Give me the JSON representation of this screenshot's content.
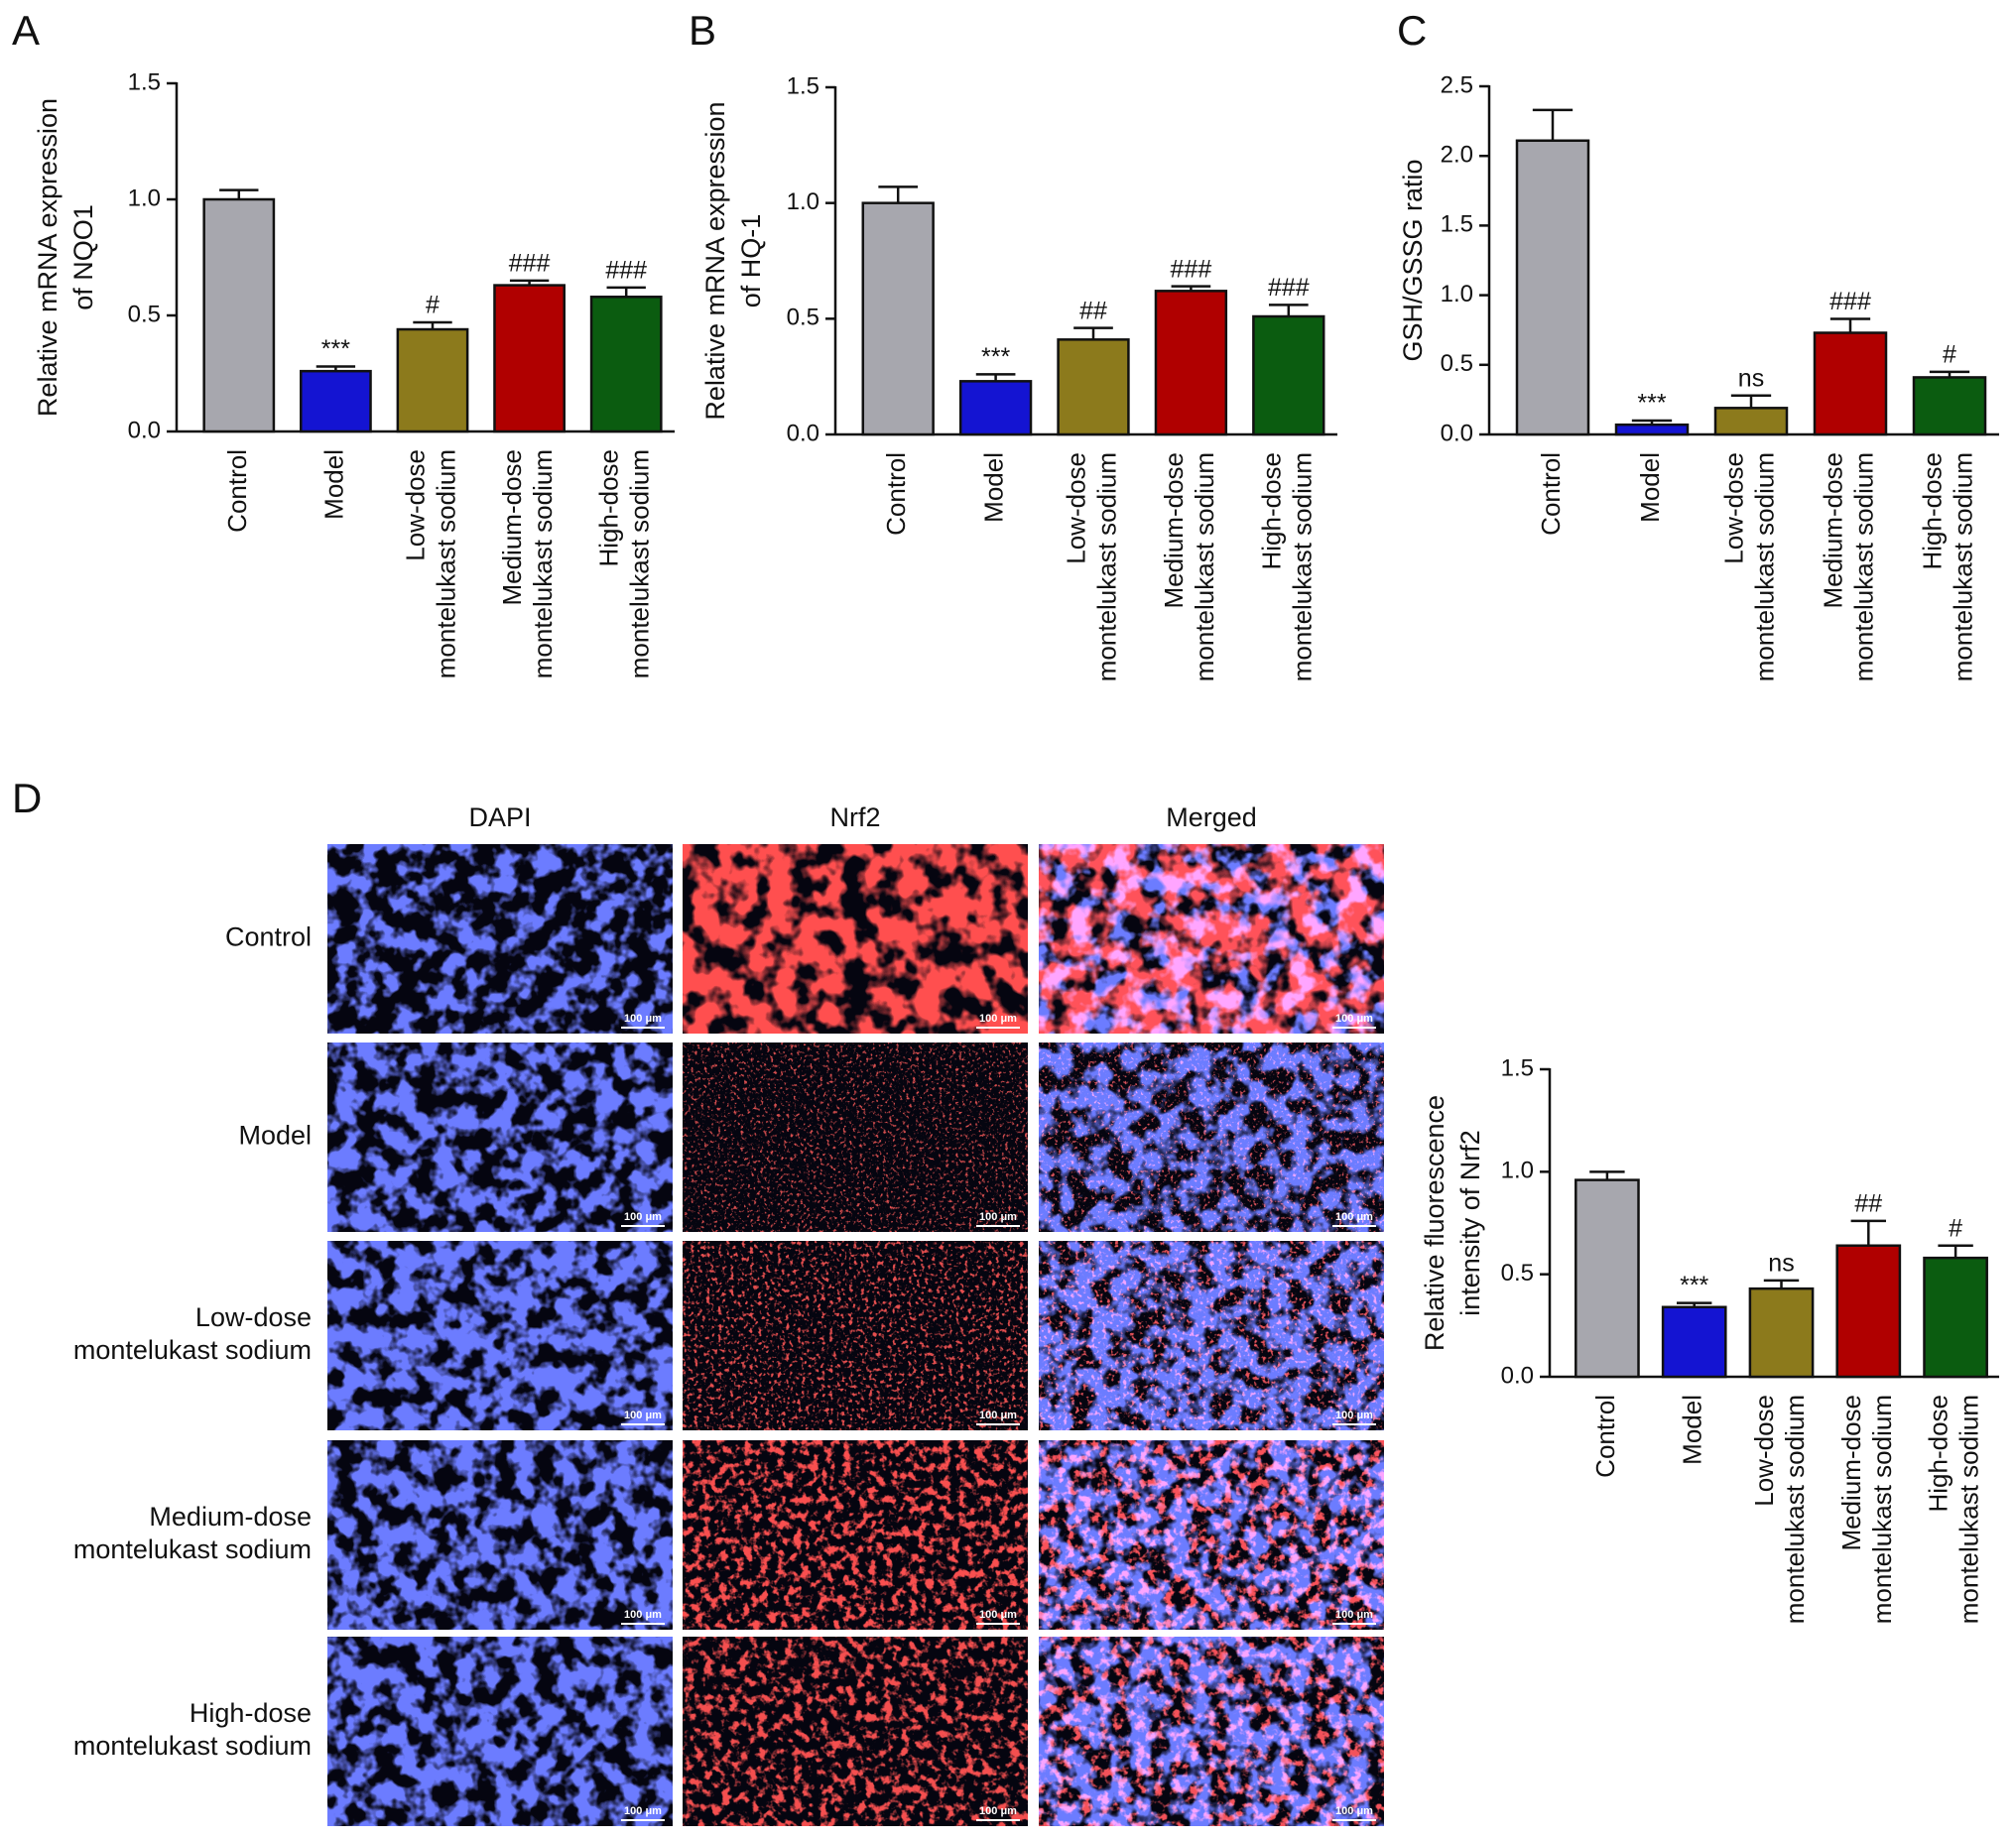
{
  "chart_data": [
    {
      "label": "A",
      "type": "bar",
      "ylabel": [
        "Relative mRNA expression",
        "of NQO1"
      ],
      "categories": [
        "Control",
        "Model",
        "Low-dose montelukast sodium",
        "Medium-dose montelukast sodium",
        "High-dose montelukast sodium"
      ],
      "values": [
        1.0,
        0.26,
        0.44,
        0.63,
        0.58
      ],
      "errors": [
        0.04,
        0.02,
        0.03,
        0.02,
        0.04
      ],
      "annotations": [
        null,
        "***",
        "#",
        "###",
        "###"
      ],
      "colors": [
        "#a7a7ae",
        "#1414d2",
        "#8c7a1c",
        "#b00000",
        "#0b5c10"
      ],
      "ylim": [
        0,
        1.5
      ],
      "yticks": [
        {
          "value": 0,
          "label": "0.0"
        },
        {
          "value": 0.5,
          "label": "0.5"
        },
        {
          "value": 1,
          "label": "1.0"
        },
        {
          "value": 1.5,
          "label": "1.5"
        }
      ]
    },
    {
      "label": "B",
      "type": "bar",
      "ylabel": [
        "Relative mRNA expression",
        "of HQ-1"
      ],
      "categories": [
        "Control",
        "Model",
        "Low-dose montelukast sodium",
        "Medium-dose montelukast sodium",
        "High-dose montelukast sodium"
      ],
      "values": [
        1.0,
        0.23,
        0.41,
        0.62,
        0.51
      ],
      "errors": [
        0.07,
        0.03,
        0.05,
        0.02,
        0.05
      ],
      "annotations": [
        null,
        "***",
        "##",
        "###",
        "###"
      ],
      "colors": [
        "#a7a7ae",
        "#1414d2",
        "#8c7a1c",
        "#b00000",
        "#0b5c10"
      ],
      "ylim": [
        0,
        1.5
      ],
      "yticks": [
        {
          "value": 0,
          "label": "0.0"
        },
        {
          "value": 0.5,
          "label": "0.5"
        },
        {
          "value": 1,
          "label": "1.0"
        },
        {
          "value": 1.5,
          "label": "1.5"
        }
      ]
    },
    {
      "label": "C",
      "type": "bar",
      "ylabel": [
        "GSH/GSSG ratio"
      ],
      "categories": [
        "Control",
        "Model",
        "Low-dose montelukast sodium",
        "Medium-dose montelukast sodium",
        "High-dose montelukast sodium"
      ],
      "values": [
        2.11,
        0.07,
        0.19,
        0.73,
        0.41
      ],
      "errors": [
        0.22,
        0.03,
        0.09,
        0.1,
        0.04
      ],
      "annotations": [
        null,
        "***",
        "ns",
        "###",
        "#"
      ],
      "colors": [
        "#a7a7ae",
        "#1414d2",
        "#8c7a1c",
        "#b00000",
        "#0b5c10"
      ],
      "ylim": [
        0,
        2.5
      ],
      "yticks": [
        {
          "value": 0,
          "label": "0.0"
        },
        {
          "value": 0.5,
          "label": "0.5"
        },
        {
          "value": 1,
          "label": "1.0"
        },
        {
          "value": 1.5,
          "label": "1.5"
        },
        {
          "value": 2,
          "label": "2.0"
        },
        {
          "value": 2.5,
          "label": "2.5"
        }
      ]
    },
    {
      "type": "bar",
      "ylabel": [
        "Relative fluorescence",
        "intensity of Nrf2"
      ],
      "categories": [
        "Control",
        "Model",
        "Low-dose montelukast sodium",
        "Medium-dose montelukast sodium",
        "High-dose montelukast sodium"
      ],
      "values": [
        0.96,
        0.34,
        0.43,
        0.64,
        0.58
      ],
      "errors": [
        0.04,
        0.02,
        0.04,
        0.12,
        0.06
      ],
      "annotations": [
        null,
        "***",
        "ns",
        "##",
        "#"
      ],
      "colors": [
        "#a7a7ae",
        "#1414d2",
        "#8c7a1c",
        "#b00000",
        "#0b5c10"
      ],
      "ylim": [
        0,
        1.5
      ],
      "yticks": [
        {
          "value": 0,
          "label": "0.0"
        },
        {
          "value": 0.5,
          "label": "0.5"
        },
        {
          "value": 1,
          "label": "1.0"
        },
        {
          "value": 1.5,
          "label": "1.5"
        }
      ]
    }
  ],
  "figure_d": {
    "label": "D",
    "columns": [
      "DAPI",
      "Nrf2",
      "Merged"
    ],
    "rows": [
      "Control",
      "Model",
      "Low-dose montelukast sodium",
      "Medium-dose montelukast sodium",
      "High-dose montelukast sodium"
    ],
    "scale_bar": "100 μm"
  }
}
